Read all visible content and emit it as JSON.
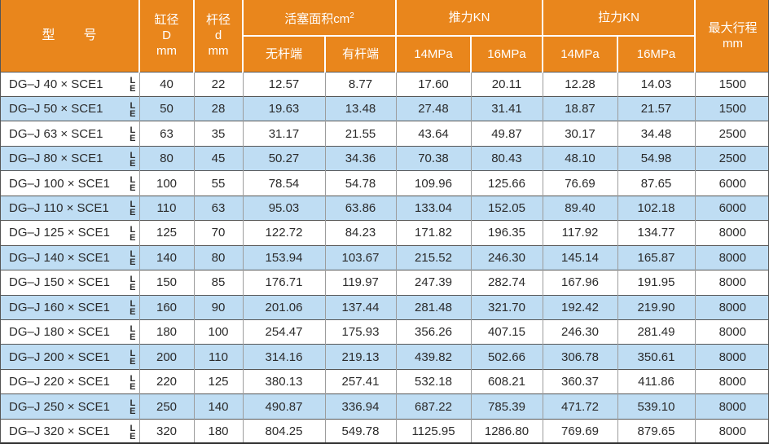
{
  "colors": {
    "header_bg": "#E9861C",
    "header_text": "#FFFFFF",
    "stripe_bg": "#BFDDF3",
    "body_text": "#2B2B2B"
  },
  "header": {
    "model": "型　　号",
    "bore_lines": [
      "缸径",
      "D",
      "mm"
    ],
    "rod_lines": [
      "杆径",
      "d",
      "mm"
    ],
    "piston_area": {
      "label": "活塞面积cm",
      "sup": "2"
    },
    "thrust": "推力KN",
    "pull": "拉力KN",
    "max_stroke_lines": [
      "最大行程",
      "mm"
    ],
    "sub": {
      "rodless": "无杆端",
      "rod_end": "有杆端",
      "thrust_14": "14MPa",
      "thrust_16": "16MPa",
      "pull_14": "14MPa",
      "pull_16": "16MPa"
    }
  },
  "variant": {
    "top": "L",
    "bottom": "E"
  },
  "rows": [
    {
      "model": "DG–J 40 × SCE1",
      "values": [
        "40",
        "22",
        "12.57",
        "8.77",
        "17.60",
        "20.11",
        "12.28",
        "14.03",
        "1500"
      ]
    },
    {
      "model": "DG–J 50 × SCE1",
      "values": [
        "50",
        "28",
        "19.63",
        "13.48",
        "27.48",
        "31.41",
        "18.87",
        "21.57",
        "1500"
      ]
    },
    {
      "model": "DG–J 63 × SCE1",
      "values": [
        "63",
        "35",
        "31.17",
        "21.55",
        "43.64",
        "49.87",
        "30.17",
        "34.48",
        "2500"
      ]
    },
    {
      "model": "DG–J 80 × SCE1",
      "values": [
        "80",
        "45",
        "50.27",
        "34.36",
        "70.38",
        "80.43",
        "48.10",
        "54.98",
        "2500"
      ]
    },
    {
      "model": "DG–J 100 × SCE1",
      "values": [
        "100",
        "55",
        "78.54",
        "54.78",
        "109.96",
        "125.66",
        "76.69",
        "87.65",
        "6000"
      ]
    },
    {
      "model": "DG–J 110 × SCE1",
      "values": [
        "110",
        "63",
        "95.03",
        "63.86",
        "133.04",
        "152.05",
        "89.40",
        "102.18",
        "6000"
      ]
    },
    {
      "model": "DG–J 125 × SCE1",
      "values": [
        "125",
        "70",
        "122.72",
        "84.23",
        "171.82",
        "196.35",
        "117.92",
        "134.77",
        "8000"
      ]
    },
    {
      "model": "DG–J 140 × SCE1",
      "values": [
        "140",
        "80",
        "153.94",
        "103.67",
        "215.52",
        "246.30",
        "145.14",
        "165.87",
        "8000"
      ]
    },
    {
      "model": "DG–J 150 × SCE1",
      "values": [
        "150",
        "85",
        "176.71",
        "119.97",
        "247.39",
        "282.74",
        "167.96",
        "191.95",
        "8000"
      ]
    },
    {
      "model": "DG–J 160 × SCE1",
      "values": [
        "160",
        "90",
        "201.06",
        "137.44",
        "281.48",
        "321.70",
        "192.42",
        "219.90",
        "8000"
      ]
    },
    {
      "model": "DG–J 180 × SCE1",
      "values": [
        "180",
        "100",
        "254.47",
        "175.93",
        "356.26",
        "407.15",
        "246.30",
        "281.49",
        "8000"
      ]
    },
    {
      "model": "DG–J 200 × SCE1",
      "values": [
        "200",
        "110",
        "314.16",
        "219.13",
        "439.82",
        "502.66",
        "306.78",
        "350.61",
        "8000"
      ]
    },
    {
      "model": "DG–J 220 × SCE1",
      "values": [
        "220",
        "125",
        "380.13",
        "257.41",
        "532.18",
        "608.21",
        "360.37",
        "411.86",
        "8000"
      ]
    },
    {
      "model": "DG–J 250 × SCE1",
      "values": [
        "250",
        "140",
        "490.87",
        "336.94",
        "687.22",
        "785.39",
        "471.72",
        "539.10",
        "8000"
      ]
    },
    {
      "model": "DG–J 320 × SCE1",
      "values": [
        "320",
        "180",
        "804.25",
        "549.78",
        "1125.95",
        "1286.80",
        "769.69",
        "879.65",
        "8000"
      ]
    }
  ]
}
